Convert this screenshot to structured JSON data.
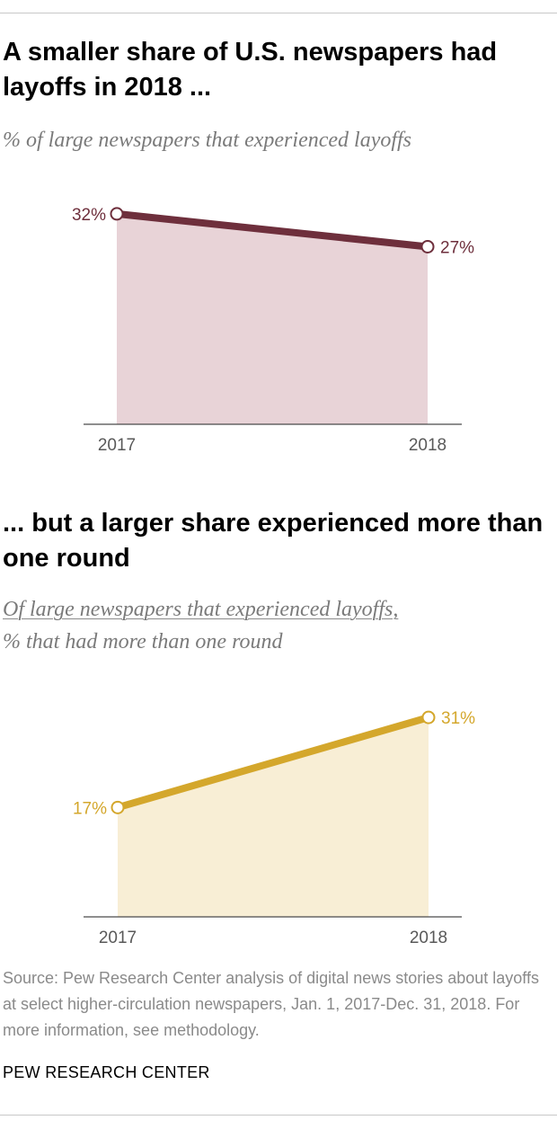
{
  "chart_data": [
    {
      "type": "area",
      "title": "A smaller share of U.S. newspapers had layoffs in 2018 ...",
      "subtitle": "% of large newspapers that experienced layoffs",
      "categories": [
        "2017",
        "2018"
      ],
      "series": [
        {
          "values": [
            32,
            27
          ],
          "labels": [
            "32%",
            "27%"
          ]
        }
      ],
      "ylim": [
        0,
        38
      ],
      "grid": false,
      "colors": {
        "line": "#6e2f3c",
        "fill": "#e8d3d7"
      }
    },
    {
      "type": "area",
      "title": "... but a larger share experienced more than one round",
      "subtitle_underlined": "Of large newspapers that experienced layoffs,",
      "subtitle": "% that had more than one round",
      "categories": [
        "2017",
        "2018"
      ],
      "series": [
        {
          "values": [
            17,
            31
          ],
          "labels": [
            "17%",
            "31%"
          ]
        }
      ],
      "ylim": [
        0,
        38
      ],
      "grid": false,
      "colors": {
        "line": "#d4a72c",
        "fill": "#f8eed5"
      }
    }
  ],
  "footer": {
    "source": "Source: Pew Research Center analysis of digital news stories about layoffs at select higher-circulation newspapers, Jan. 1, 2017-Dec. 31, 2018. For more information, see methodology.",
    "org": "PEW RESEARCH CENTER"
  }
}
